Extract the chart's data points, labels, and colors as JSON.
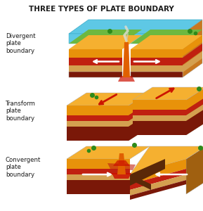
{
  "title": "THREE TYPES OF PLATE BOUNDARY",
  "title_fontsize": 7.5,
  "title_fontweight": "bold",
  "background_color": "#ffffff",
  "labels": [
    "Divergent\nplate\nboundary",
    "Transform\nplate\nboundary",
    "Convergent\nplate\nboundary"
  ],
  "label_fontsize": 6.2,
  "colors": {
    "water": "#5ec8e5",
    "water_dark": "#3aaac8",
    "seafloor_green": "#6db840",
    "rock_orange": "#e8920a",
    "rock_light_orange": "#f5b030",
    "rock_dark_orange": "#c8700a",
    "mantle_red": "#c02010",
    "mantle_mid": "#a83010",
    "mantle_dark": "#7a1808",
    "sand_tan": "#d4a050",
    "arrow_white": "#ffffff",
    "arrow_red": "#cc1500",
    "volcano_orange": "#e06000",
    "lava_red": "#cc1000",
    "green_bush": "#2d8a1a",
    "plate_side_orange": "#c87820",
    "plate_right_side": "#a06010",
    "subduct_dark": "#5a2808",
    "gray_edge": "#aaaaaa"
  }
}
